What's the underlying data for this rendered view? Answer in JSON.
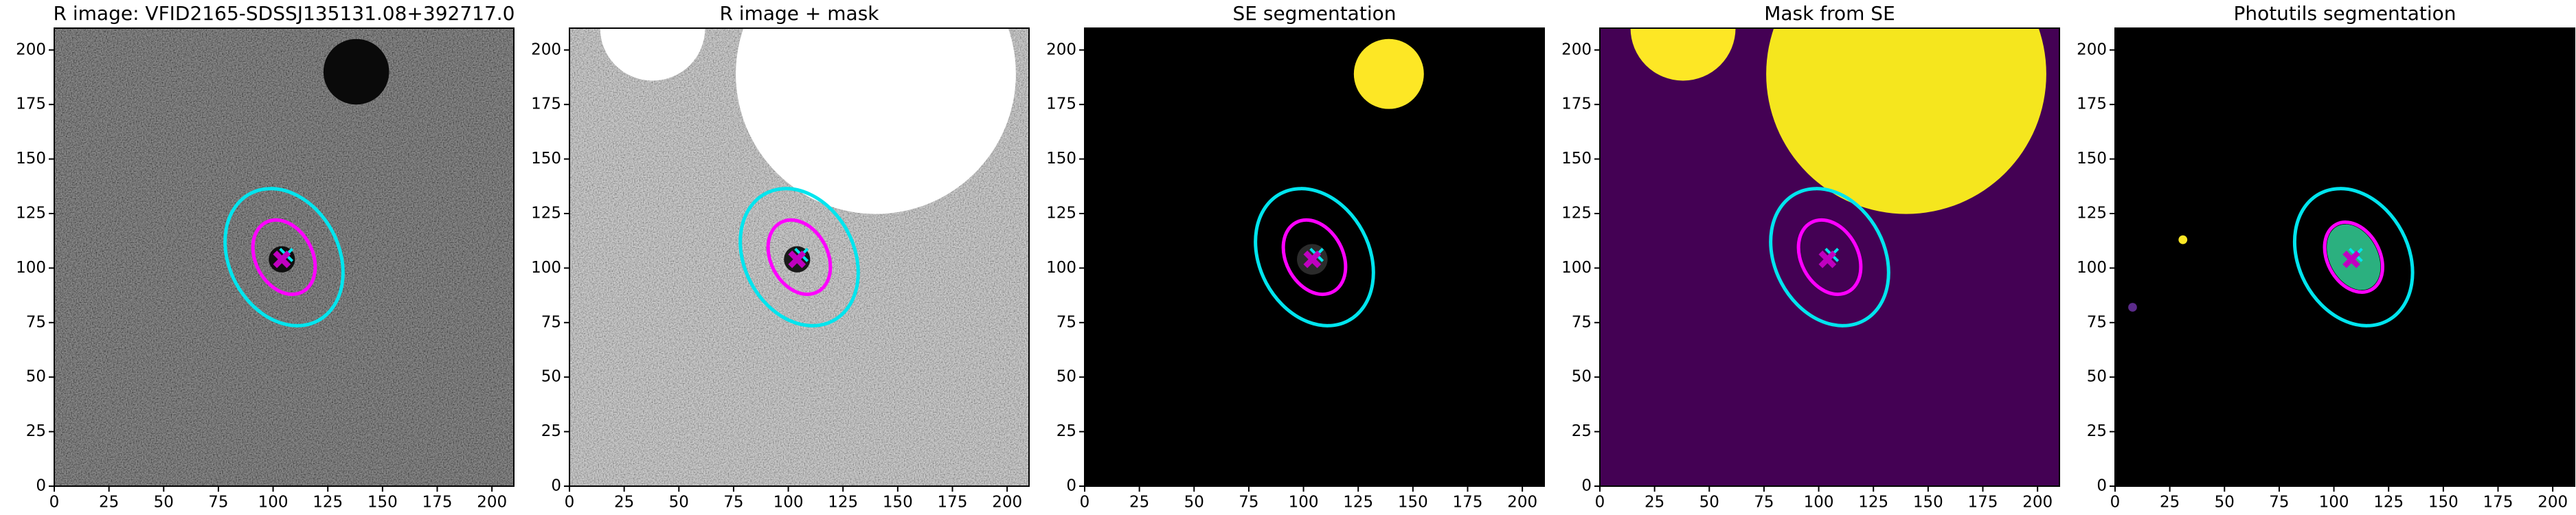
{
  "chart_data": [
    {
      "type": "image",
      "title": "R image: VFID2165-SDSSJ135131.08+392717.0",
      "xlim": [
        0,
        210
      ],
      "ylim": [
        0,
        210
      ],
      "xticks": [
        0,
        25,
        50,
        75,
        100,
        125,
        150,
        175,
        200
      ],
      "yticks": [
        0,
        25,
        50,
        75,
        100,
        125,
        150,
        175,
        200
      ],
      "background": "#3c3c3c",
      "noise": true,
      "features": [
        {
          "shape": "circle",
          "x": 138,
          "y": 190,
          "r": 15,
          "color": "#0a0a0a"
        },
        {
          "shape": "circle",
          "x": 104,
          "y": 104,
          "r": 6,
          "color": "#0e0e0e"
        },
        {
          "shape": "ellipse",
          "x": 105,
          "y": 105,
          "rx": 25,
          "ry": 33,
          "angle": -28,
          "color": "#00e5ee"
        },
        {
          "shape": "ellipse",
          "x": 105,
          "y": 105,
          "rx": 13,
          "ry": 18,
          "angle": -28,
          "color": "#ff00ff"
        },
        {
          "shape": "x",
          "x": 106,
          "y": 106,
          "color": "#00e5ee"
        },
        {
          "shape": "X",
          "x": 104,
          "y": 104,
          "color": "#c000c0"
        }
      ]
    },
    {
      "type": "image",
      "title": "R image + mask",
      "xlim": [
        0,
        210
      ],
      "ylim": [
        0,
        210
      ],
      "xticks": [
        0,
        25,
        50,
        75,
        100,
        125,
        150,
        175,
        200
      ],
      "yticks": [
        0,
        25,
        50,
        75,
        100,
        125,
        150,
        175,
        200
      ],
      "background": "#b4b4b4",
      "noise": true,
      "features": [
        {
          "shape": "circle",
          "x": 38,
          "y": 210,
          "r": 24,
          "color": "#ffffff"
        },
        {
          "shape": "circle",
          "x": 140,
          "y": 189,
          "r": 64,
          "color": "#ffffff"
        },
        {
          "shape": "circle",
          "x": 104,
          "y": 104,
          "r": 6,
          "color": "#1a1a1a"
        },
        {
          "shape": "ellipse",
          "x": 105,
          "y": 105,
          "rx": 25,
          "ry": 33,
          "angle": -28,
          "color": "#00e5ee"
        },
        {
          "shape": "ellipse",
          "x": 105,
          "y": 105,
          "rx": 13,
          "ry": 18,
          "angle": -28,
          "color": "#ff00ff"
        },
        {
          "shape": "x",
          "x": 106,
          "y": 106,
          "color": "#00e5ee"
        },
        {
          "shape": "X",
          "x": 104,
          "y": 104,
          "color": "#c000c0"
        }
      ]
    },
    {
      "type": "image",
      "title": "SE segmentation",
      "xlim": [
        0,
        210
      ],
      "ylim": [
        0,
        210
      ],
      "xticks": [
        0,
        25,
        50,
        75,
        100,
        125,
        150,
        175,
        200
      ],
      "yticks": [
        0,
        25,
        50,
        75,
        100,
        125,
        150,
        175,
        200
      ],
      "background": "#000000",
      "noise": false,
      "features": [
        {
          "shape": "circle",
          "x": 139,
          "y": 189,
          "r": 16,
          "color": "#fde725"
        },
        {
          "shape": "circle",
          "x": 104,
          "y": 104,
          "r": 7,
          "color": "#2b2b2b"
        },
        {
          "shape": "ellipse",
          "x": 105,
          "y": 105,
          "rx": 25,
          "ry": 33,
          "angle": -28,
          "color": "#00e5ee"
        },
        {
          "shape": "ellipse",
          "x": 105,
          "y": 105,
          "rx": 13,
          "ry": 18,
          "angle": -28,
          "color": "#ff00ff"
        },
        {
          "shape": "x",
          "x": 106,
          "y": 106,
          "color": "#00e5ee"
        },
        {
          "shape": "X",
          "x": 104,
          "y": 104,
          "color": "#c000c0"
        }
      ]
    },
    {
      "type": "image",
      "title": "Mask from SE",
      "xlim": [
        0,
        210
      ],
      "ylim": [
        0,
        210
      ],
      "xticks": [
        0,
        25,
        50,
        75,
        100,
        125,
        150,
        175,
        200
      ],
      "yticks": [
        0,
        25,
        50,
        75,
        100,
        125,
        150,
        175,
        200
      ],
      "background": "#440154",
      "noise": false,
      "features": [
        {
          "shape": "circle",
          "x": 38,
          "y": 210,
          "r": 24,
          "color": "#fde725"
        },
        {
          "shape": "circle",
          "x": 140,
          "y": 189,
          "r": 64,
          "color": "#f5e61e"
        },
        {
          "shape": "ellipse",
          "x": 105,
          "y": 105,
          "rx": 25,
          "ry": 33,
          "angle": -28,
          "color": "#00e5ee"
        },
        {
          "shape": "ellipse",
          "x": 105,
          "y": 105,
          "rx": 13,
          "ry": 18,
          "angle": -28,
          "color": "#ff00ff"
        },
        {
          "shape": "x",
          "x": 106,
          "y": 106,
          "color": "#00e5ee"
        },
        {
          "shape": "X",
          "x": 104,
          "y": 104,
          "color": "#c000c0"
        }
      ]
    },
    {
      "type": "image",
      "title": "Photutils segmentation",
      "xlim": [
        0,
        210
      ],
      "ylim": [
        0,
        210
      ],
      "xticks": [
        0,
        25,
        50,
        75,
        100,
        125,
        150,
        175,
        200
      ],
      "yticks": [
        0,
        25,
        50,
        75,
        100,
        125,
        150,
        175,
        200
      ],
      "background": "#000000",
      "noise": false,
      "features": [
        {
          "shape": "circle",
          "x": 31,
          "y": 113,
          "r": 2,
          "color": "#fde725"
        },
        {
          "shape": "circle",
          "x": 8,
          "y": 82,
          "r": 2,
          "color": "#5b2b8a"
        },
        {
          "shape": "ellipse",
          "x": 109,
          "y": 105,
          "rx": 11,
          "ry": 16,
          "angle": -28,
          "color": "#2bb07f",
          "filled": true
        },
        {
          "shape": "ellipse",
          "x": 109,
          "y": 105,
          "rx": 25,
          "ry": 33,
          "angle": -28,
          "color": "#00e5ee"
        },
        {
          "shape": "ellipse",
          "x": 109,
          "y": 105,
          "rx": 12,
          "ry": 17,
          "angle": -28,
          "color": "#ff00ff"
        },
        {
          "shape": "x",
          "x": 110,
          "y": 106,
          "color": "#00e5ee"
        },
        {
          "shape": "X",
          "x": 108,
          "y": 104,
          "color": "#c000c0"
        }
      ]
    }
  ]
}
